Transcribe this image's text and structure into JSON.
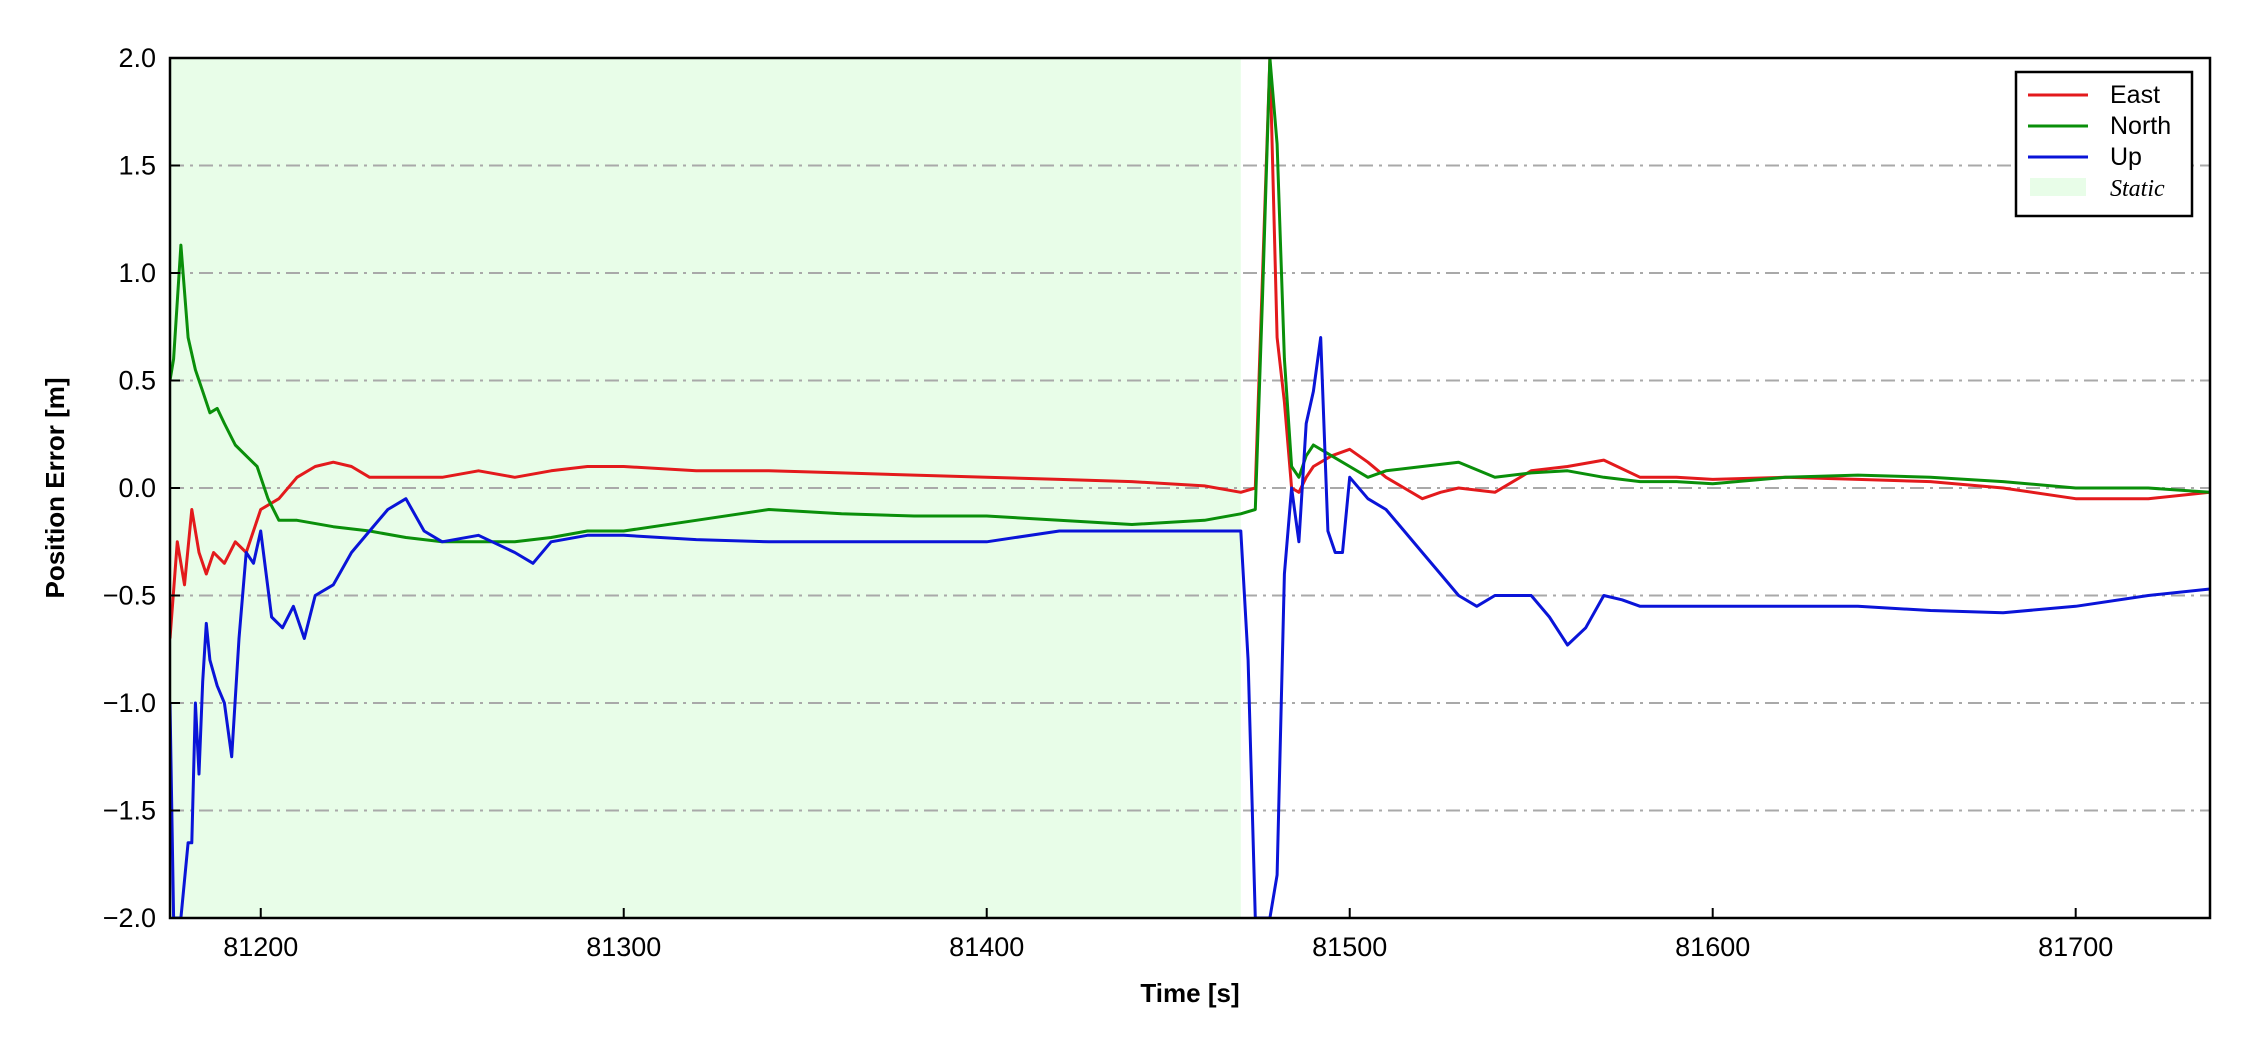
{
  "chart_data": {
    "type": "line",
    "xlabel": "Time [s]",
    "ylabel": "Position Error [m]",
    "xlim": [
      81175,
      81737
    ],
    "ylim": [
      -2.0,
      2.0
    ],
    "xticks": [
      81200,
      81300,
      81400,
      81500,
      81600,
      81700
    ],
    "yticks": [
      -2.0,
      -1.5,
      -1.0,
      -0.5,
      0.0,
      0.5,
      1.0,
      1.5,
      2.0
    ],
    "ytick_labels": [
      "−2.0",
      "−1.5",
      "−1.0",
      "−0.5",
      "0.0",
      "0.5",
      "1.0",
      "1.5",
      "2.0"
    ],
    "grid": "horizontal dash-dot",
    "legend_position": "top-right",
    "static_region": {
      "name": "Static",
      "x_start": 81175,
      "x_end": 81470,
      "color": "#e8fde8"
    },
    "series": [
      {
        "name": "East",
        "color": "#e31a1c",
        "x": [
          81175,
          81177,
          81179,
          81181,
          81183,
          81185,
          81187,
          81190,
          81193,
          81196,
          81200,
          81205,
          81210,
          81215,
          81220,
          81225,
          81230,
          81240,
          81250,
          81260,
          81270,
          81280,
          81290,
          81300,
          81320,
          81340,
          81360,
          81380,
          81400,
          81420,
          81440,
          81460,
          81470,
          81474,
          81476,
          81478,
          81480,
          81482,
          81484,
          81486,
          81488,
          81490,
          81495,
          81500,
          81505,
          81510,
          81515,
          81520,
          81525,
          81530,
          81540,
          81550,
          81560,
          81570,
          81580,
          81590,
          81600,
          81620,
          81640,
          81660,
          81680,
          81700,
          81720,
          81737
        ],
        "y": [
          -0.7,
          -0.25,
          -0.45,
          -0.1,
          -0.3,
          -0.4,
          -0.3,
          -0.35,
          -0.25,
          -0.3,
          -0.1,
          -0.05,
          0.05,
          0.1,
          0.12,
          0.1,
          0.05,
          0.05,
          0.05,
          0.08,
          0.05,
          0.08,
          0.1,
          0.1,
          0.08,
          0.08,
          0.07,
          0.06,
          0.05,
          0.04,
          0.03,
          0.01,
          -0.02,
          0.0,
          1.0,
          2.0,
          0.7,
          0.4,
          0.0,
          -0.02,
          0.05,
          0.1,
          0.15,
          0.18,
          0.12,
          0.05,
          0.0,
          -0.05,
          -0.02,
          0.0,
          -0.02,
          0.08,
          0.1,
          0.13,
          0.05,
          0.05,
          0.04,
          0.05,
          0.04,
          0.03,
          0.0,
          -0.05,
          -0.05,
          -0.02
        ]
      },
      {
        "name": "North",
        "color": "#0a8f0a",
        "x": [
          81175,
          81176,
          81178,
          81180,
          81182,
          81184,
          81186,
          81188,
          81190,
          81193,
          81196,
          81199,
          81202,
          81205,
          81210,
          81220,
          81230,
          81240,
          81250,
          81260,
          81270,
          81280,
          81290,
          81300,
          81320,
          81340,
          81360,
          81380,
          81400,
          81420,
          81440,
          81460,
          81470,
          81474,
          81476,
          81478,
          81480,
          81482,
          81484,
          81486,
          81488,
          81490,
          81495,
          81500,
          81505,
          81510,
          81520,
          81530,
          81540,
          81550,
          81560,
          81570,
          81580,
          81590,
          81600,
          81620,
          81640,
          81660,
          81680,
          81700,
          81720,
          81737
        ],
        "y": [
          0.5,
          0.6,
          1.13,
          0.7,
          0.55,
          0.45,
          0.35,
          0.37,
          0.3,
          0.2,
          0.15,
          0.1,
          -0.05,
          -0.15,
          -0.15,
          -0.18,
          -0.2,
          -0.23,
          -0.25,
          -0.25,
          -0.25,
          -0.23,
          -0.2,
          -0.2,
          -0.15,
          -0.1,
          -0.12,
          -0.13,
          -0.13,
          -0.15,
          -0.17,
          -0.15,
          -0.12,
          -0.1,
          0.9,
          2.0,
          1.6,
          0.6,
          0.1,
          0.05,
          0.15,
          0.2,
          0.15,
          0.1,
          0.05,
          0.08,
          0.1,
          0.12,
          0.05,
          0.07,
          0.08,
          0.05,
          0.03,
          0.03,
          0.02,
          0.05,
          0.06,
          0.05,
          0.03,
          0.0,
          0.0,
          -0.02
        ]
      },
      {
        "name": "Up",
        "color": "#0a14d8",
        "x": [
          81175,
          81176,
          81178,
          81180,
          81181,
          81182,
          81183,
          81184,
          81185,
          81186,
          81188,
          81190,
          81192,
          81194,
          81196,
          81198,
          81200,
          81203,
          81206,
          81209,
          81212,
          81215,
          81220,
          81225,
          81230,
          81235,
          81240,
          81245,
          81250,
          81260,
          81270,
          81275,
          81280,
          81290,
          81300,
          81320,
          81340,
          81360,
          81380,
          81400,
          81420,
          81440,
          81460,
          81470,
          81472,
          81474,
          81476,
          81478,
          81480,
          81482,
          81484,
          81486,
          81488,
          81490,
          81492,
          81494,
          81496,
          81498,
          81500,
          81505,
          81510,
          81515,
          81520,
          81525,
          81530,
          81535,
          81540,
          81545,
          81550,
          81555,
          81560,
          81565,
          81570,
          81575,
          81580,
          81590,
          81600,
          81620,
          81640,
          81660,
          81680,
          81700,
          81720,
          81737
        ],
        "y": [
          -1.0,
          -2.0,
          -2.0,
          -1.65,
          -1.65,
          -1.0,
          -1.33,
          -0.9,
          -0.63,
          -0.8,
          -0.92,
          -1.0,
          -1.25,
          -0.7,
          -0.3,
          -0.35,
          -0.2,
          -0.6,
          -0.65,
          -0.55,
          -0.7,
          -0.5,
          -0.45,
          -0.3,
          -0.2,
          -0.1,
          -0.05,
          -0.2,
          -0.25,
          -0.22,
          -0.3,
          -0.35,
          -0.25,
          -0.22,
          -0.22,
          -0.24,
          -0.25,
          -0.25,
          -0.25,
          -0.25,
          -0.2,
          -0.2,
          -0.2,
          -0.2,
          -0.8,
          -2.0,
          -2.0,
          -2.0,
          -1.8,
          -0.4,
          0.0,
          -0.25,
          0.3,
          0.45,
          0.7,
          -0.2,
          -0.3,
          -0.3,
          0.05,
          -0.05,
          -0.1,
          -0.2,
          -0.3,
          -0.4,
          -0.5,
          -0.55,
          -0.5,
          -0.5,
          -0.5,
          -0.6,
          -0.73,
          -0.65,
          -0.5,
          -0.52,
          -0.55,
          -0.55,
          -0.55,
          -0.55,
          -0.55,
          -0.57,
          -0.58,
          -0.55,
          -0.5,
          -0.47
        ]
      }
    ]
  }
}
